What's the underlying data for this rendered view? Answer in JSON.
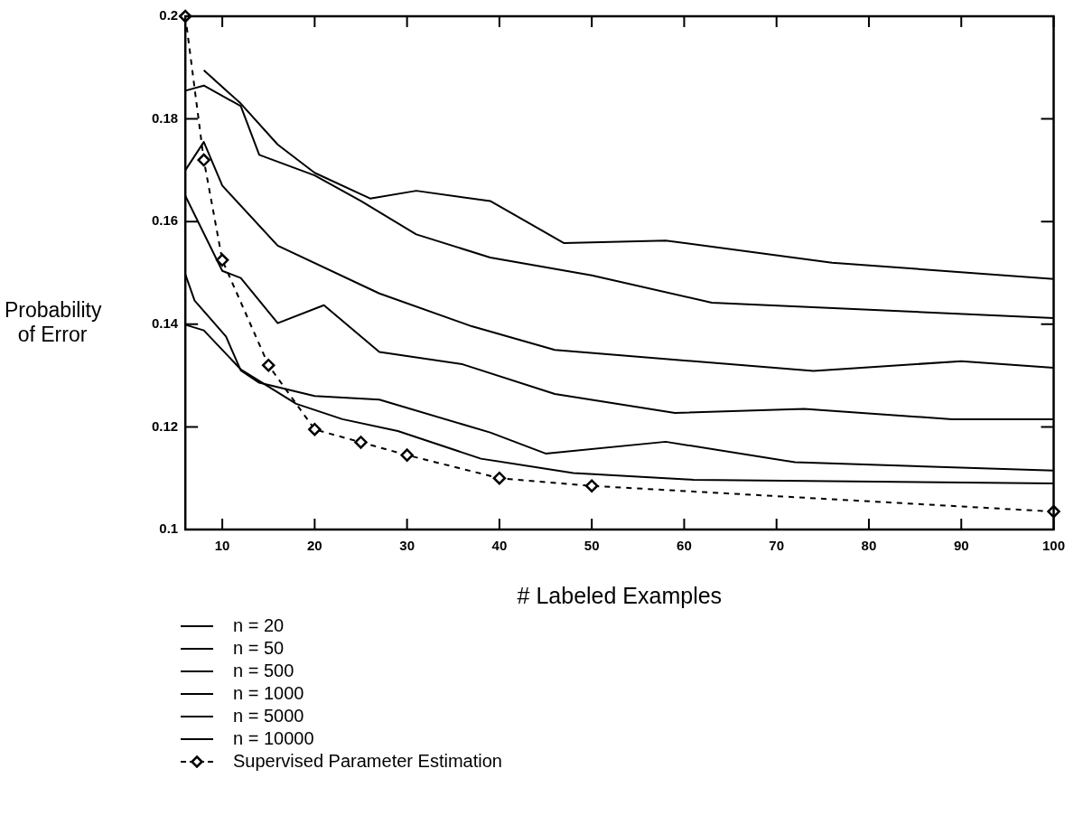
{
  "chart_data": {
    "type": "line",
    "xlabel": "# Labeled Examples",
    "ylabel": "Probability of Error",
    "xlim": [
      6,
      100
    ],
    "ylim": [
      0.1,
      0.2
    ],
    "xticks": [
      10,
      20,
      30,
      40,
      50,
      60,
      70,
      80,
      90,
      100
    ],
    "yticks": [
      0.1,
      0.12,
      0.14,
      0.16,
      0.18,
      0.2
    ],
    "grid": false,
    "legend": "bottom",
    "series": [
      {
        "name": "n = 20",
        "color": "#000000",
        "x": [
          8,
          12,
          16,
          20,
          26,
          31,
          39,
          47,
          58,
          76,
          100
        ],
        "values": [
          0.1895,
          0.183,
          0.175,
          0.1695,
          0.1645,
          0.166,
          0.164,
          0.1558,
          0.1563,
          0.152,
          0.1488
        ]
      },
      {
        "name": "n = 50",
        "color": "#000000",
        "x": [
          6,
          8,
          12,
          14,
          20,
          25,
          31,
          39,
          50,
          63,
          100
        ],
        "values": [
          0.1855,
          0.1865,
          0.1825,
          0.173,
          0.169,
          0.164,
          0.1575,
          0.153,
          0.1495,
          0.1442,
          0.1412
        ]
      },
      {
        "name": "n = 500",
        "color": "#000000",
        "x": [
          6,
          8,
          10,
          16,
          27,
          37,
          46,
          74,
          90,
          100
        ],
        "values": [
          0.17,
          0.1755,
          0.167,
          0.1553,
          0.146,
          0.1396,
          0.135,
          0.1309,
          0.1328,
          0.1315
        ]
      },
      {
        "name": "n = 1000",
        "color": "#000000",
        "x": [
          6,
          10,
          12,
          16,
          21,
          27,
          36,
          46,
          59,
          73,
          89,
          100
        ],
        "values": [
          0.165,
          0.1504,
          0.149,
          0.1402,
          0.1437,
          0.1346,
          0.1322,
          0.1264,
          0.1227,
          0.1235,
          0.1215,
          0.1215
        ]
      },
      {
        "name": "n = 5000",
        "color": "#000000",
        "x": [
          6,
          7,
          10.4,
          12,
          14,
          20,
          27,
          39,
          45,
          58,
          72,
          100
        ],
        "values": [
          0.1497,
          0.1446,
          0.1376,
          0.131,
          0.1286,
          0.126,
          0.1253,
          0.1189,
          0.1148,
          0.1171,
          0.1131,
          0.1115
        ]
      },
      {
        "name": "n = 10000",
        "color": "#000000",
        "x": [
          6,
          8,
          12,
          18,
          23,
          29,
          38,
          48,
          61,
          100
        ],
        "values": [
          0.1399,
          0.1388,
          0.1312,
          0.1245,
          0.1215,
          0.1192,
          0.1138,
          0.111,
          0.1097,
          0.109
        ]
      },
      {
        "name": "Supervised Parameter Estimation",
        "color": "#000000",
        "line_style": "dashed",
        "marker": "diamond",
        "x": [
          6,
          8,
          10,
          15,
          20,
          25,
          30,
          40,
          50,
          100
        ],
        "values": [
          0.2,
          0.172,
          0.1525,
          0.132,
          0.1195,
          0.117,
          0.1145,
          0.11,
          0.1085,
          0.1035
        ]
      }
    ]
  }
}
